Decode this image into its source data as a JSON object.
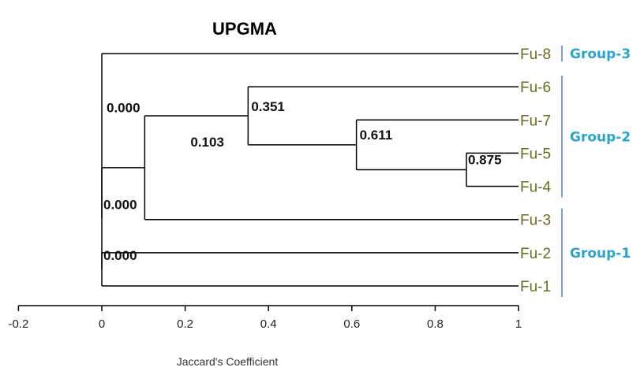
{
  "title": "UPGMA",
  "axis": {
    "label": "Jaccard's Coefficient",
    "ticks": [
      "-0.2",
      "0",
      "0.2",
      "0.4",
      "0.6",
      "0.8",
      "1"
    ],
    "range": [
      -0.2,
      1
    ]
  },
  "leaves": [
    {
      "id": "fu8",
      "label": "Fu-8"
    },
    {
      "id": "fu6",
      "label": "Fu-6"
    },
    {
      "id": "fu7",
      "label": "Fu-7"
    },
    {
      "id": "fu5",
      "label": "Fu-5"
    },
    {
      "id": "fu4",
      "label": "Fu-4"
    },
    {
      "id": "fu3",
      "label": "Fu-3"
    },
    {
      "id": "fu2",
      "label": "Fu-2"
    },
    {
      "id": "fu1",
      "label": "Fu-1"
    }
  ],
  "nodes": [
    {
      "id": "n54",
      "value": 0.875,
      "label": "0.875",
      "children": [
        "fu5",
        "fu4"
      ]
    },
    {
      "id": "n754",
      "value": 0.611,
      "label": "0.611",
      "children": [
        "fu7",
        "n54"
      ]
    },
    {
      "id": "n6754",
      "value": 0.351,
      "label": "0.351",
      "children": [
        "fu6",
        "n754"
      ]
    },
    {
      "id": "n67543",
      "value": 0.103,
      "label": "0.103",
      "children": [
        "n6754",
        "fu3"
      ]
    },
    {
      "id": "n21",
      "value": 0,
      "label": "0.000",
      "children": [
        "fu2",
        "fu1"
      ]
    },
    {
      "id": "n_mid",
      "value": 0,
      "label": "0.000",
      "children": [
        "n67543",
        "n21"
      ]
    },
    {
      "id": "root",
      "value": 0,
      "label": "0.000",
      "children": [
        "fu8",
        "n_mid"
      ]
    }
  ],
  "groups": [
    {
      "label": "Group-3",
      "from": "fu8",
      "to": "fu8"
    },
    {
      "label": "Group-2",
      "from": "fu6",
      "to": "fu4"
    },
    {
      "label": "Group-1",
      "from": "fu3",
      "to": "fu1"
    }
  ],
  "colors": {
    "lines": "#000000",
    "leaf_text": "#6b6b1f",
    "group_text": "#2aa3d1",
    "bracket": "#4a7fbf"
  }
}
